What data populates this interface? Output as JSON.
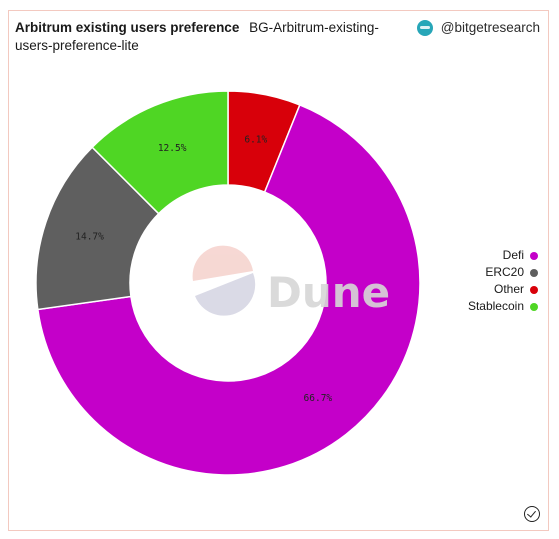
{
  "header": {
    "title": "Arbitrum existing users preference",
    "subtitle": "BG-Arbitrum-existing-users-preference-lite",
    "handle": "@bitgetresearch"
  },
  "watermark": {
    "text": "Dune",
    "logo_colors": [
      "#f6d4cf",
      "#d6d6e4"
    ]
  },
  "chart_data": {
    "type": "pie",
    "donut": true,
    "categories": [
      "Defi",
      "ERC20",
      "Other",
      "Stablecoin"
    ],
    "values": [
      66.7,
      14.7,
      6.1,
      12.5
    ],
    "colors": [
      "#c400c9",
      "#5f5f5f",
      "#d8000a",
      "#4fd624"
    ],
    "labels": [
      "66.7%",
      "14.7%",
      "6.1%",
      "12.5%"
    ],
    "slice_order": [
      "Other",
      "Defi",
      "ERC20",
      "Stablecoin"
    ],
    "legend_position": "right",
    "title": "Arbitrum existing users preference"
  }
}
